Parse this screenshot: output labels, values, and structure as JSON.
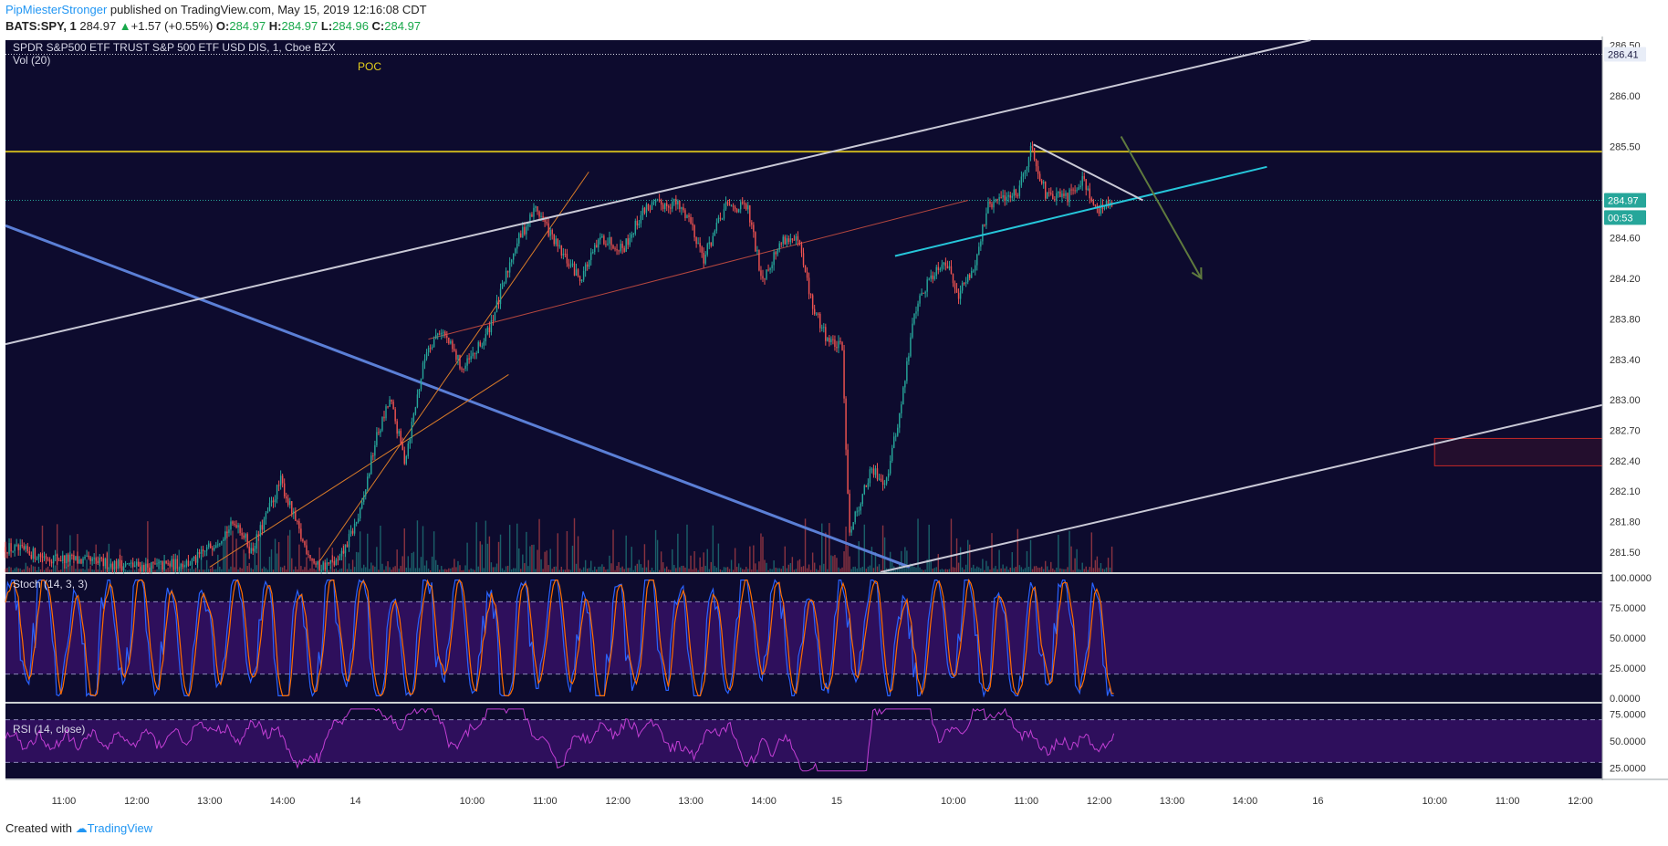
{
  "header": {
    "author": "PipMiesterStronger",
    "published_text": "published on TradingView.com, May 15, 2019 12:16:08 CDT",
    "symbol": "BATS:SPY, 1",
    "last_price": "284.97",
    "change_text": "+1.57 (+0.55%)",
    "open_label": "O:",
    "open_value": "284.97",
    "high_label": "H:",
    "high_value": "284.97",
    "low_label": "L:",
    "low_value": "284.96",
    "close_label": "C:",
    "close_value": "284.97"
  },
  "footer": {
    "created_with": "Created with",
    "brand": "TradingView"
  },
  "chart_data": {
    "type": "candlestick",
    "title": "SPDR S&P500 ETF TRUST S&P 500 ETF USD DIS, 1, Cboe BZX",
    "volume_label": "Vol (20)",
    "poc_label": "POC",
    "colors": {
      "background": "#0d0b2e",
      "up": "#26a69a",
      "down": "#ef5350",
      "poc_line": "#c7b21e",
      "last_price_line": "#26a69a",
      "stoch_band": "#2e0f5c",
      "stoch_k": "#2962ff",
      "stoch_d": "#ff6d00",
      "rsi_band": "#2e0f5c",
      "rsi_line": "#c23fd4",
      "trend_light": "#c9c9d6",
      "trend_blue": "#5b7fd6",
      "channel_orange": "#d97b28",
      "cyan_line": "#26c6da",
      "arrow_green": "#5f7a3e",
      "zone_red": "#c62828"
    },
    "price_axis": {
      "ylim": [
        281.3,
        286.55
      ],
      "ticks": [
        "286.50",
        "286.00",
        "285.50",
        "284.60",
        "284.20",
        "283.80",
        "283.40",
        "283.00",
        "282.70",
        "282.40",
        "282.10",
        "281.80",
        "281.50"
      ],
      "tick_values": [
        286.5,
        286.0,
        285.5,
        284.6,
        284.2,
        283.8,
        283.4,
        283.0,
        282.7,
        282.4,
        282.1,
        281.8,
        281.5
      ],
      "price_labels": [
        {
          "text": "286.41",
          "value": 286.41
        },
        {
          "text": "284.97",
          "value": 284.97
        },
        {
          "text": "00:53",
          "value": 284.8
        }
      ],
      "poc_level": 285.45
    },
    "time_axis": {
      "labels": [
        "11:00",
        "12:00",
        "13:00",
        "14:00",
        "14",
        "10:00",
        "11:00",
        "12:00",
        "13:00",
        "14:00",
        "15",
        "10:00",
        "11:00",
        "12:00",
        "13:00",
        "14:00",
        "16",
        "10:00",
        "11:00",
        "12:00"
      ],
      "positions": [
        0.8,
        1.8,
        2.8,
        3.8,
        4.8,
        6.4,
        7.4,
        8.4,
        9.4,
        10.4,
        11.4,
        13.0,
        14.0,
        15.0,
        16.0,
        17.0,
        18.0,
        19.6,
        20.6,
        21.6
      ],
      "xlim": [
        0,
        21.9
      ]
    },
    "price_series": [
      {
        "x": 0.0,
        "y": 281.55
      },
      {
        "x": 0.6,
        "y": 281.45
      },
      {
        "x": 1.2,
        "y": 281.4
      },
      {
        "x": 2.0,
        "y": 281.35
      },
      {
        "x": 2.6,
        "y": 281.4
      },
      {
        "x": 3.2,
        "y": 281.8
      },
      {
        "x": 3.4,
        "y": 281.5
      },
      {
        "x": 3.8,
        "y": 282.2
      },
      {
        "x": 4.1,
        "y": 281.6
      },
      {
        "x": 4.3,
        "y": 281.35
      },
      {
        "x": 4.6,
        "y": 281.4
      },
      {
        "x": 4.9,
        "y": 281.9
      },
      {
        "x": 5.1,
        "y": 282.6
      },
      {
        "x": 5.3,
        "y": 283.0
      },
      {
        "x": 5.5,
        "y": 282.4
      },
      {
        "x": 5.8,
        "y": 283.5
      },
      {
        "x": 6.0,
        "y": 283.7
      },
      {
        "x": 6.3,
        "y": 283.3
      },
      {
        "x": 6.6,
        "y": 283.6
      },
      {
        "x": 6.8,
        "y": 284.0
      },
      {
        "x": 7.0,
        "y": 284.5
      },
      {
        "x": 7.3,
        "y": 284.9
      },
      {
        "x": 7.6,
        "y": 284.5
      },
      {
        "x": 7.9,
        "y": 284.2
      },
      {
        "x": 8.2,
        "y": 284.6
      },
      {
        "x": 8.5,
        "y": 284.5
      },
      {
        "x": 8.8,
        "y": 284.9
      },
      {
        "x": 9.2,
        "y": 284.95
      },
      {
        "x": 9.4,
        "y": 284.8
      },
      {
        "x": 9.6,
        "y": 284.4
      },
      {
        "x": 9.9,
        "y": 284.9
      },
      {
        "x": 10.2,
        "y": 284.9
      },
      {
        "x": 10.4,
        "y": 284.2
      },
      {
        "x": 10.7,
        "y": 284.6
      },
      {
        "x": 10.9,
        "y": 284.55
      },
      {
        "x": 11.1,
        "y": 283.9
      },
      {
        "x": 11.3,
        "y": 283.6
      },
      {
        "x": 11.5,
        "y": 283.5
      },
      {
        "x": 11.6,
        "y": 281.7
      },
      {
        "x": 11.9,
        "y": 282.3
      },
      {
        "x": 12.1,
        "y": 282.2
      },
      {
        "x": 12.3,
        "y": 282.9
      },
      {
        "x": 12.5,
        "y": 283.9
      },
      {
        "x": 12.7,
        "y": 284.2
      },
      {
        "x": 12.9,
        "y": 284.4
      },
      {
        "x": 13.1,
        "y": 284.05
      },
      {
        "x": 13.3,
        "y": 284.3
      },
      {
        "x": 13.5,
        "y": 284.9
      },
      {
        "x": 13.7,
        "y": 285.0
      },
      {
        "x": 13.9,
        "y": 285.05
      },
      {
        "x": 14.1,
        "y": 285.5
      },
      {
        "x": 14.3,
        "y": 285.0
      },
      {
        "x": 14.6,
        "y": 285.0
      },
      {
        "x": 14.8,
        "y": 285.2
      },
      {
        "x": 15.0,
        "y": 284.85
      },
      {
        "x": 15.2,
        "y": 284.97
      }
    ],
    "stoch": {
      "label": "Stoch (14, 3, 3)",
      "ylim": [
        -3,
        103
      ],
      "ticks": [
        "100.0000",
        "75.0000",
        "50.0000",
        "25.0000",
        "0.0000"
      ],
      "tick_values": [
        100,
        75,
        50,
        25,
        0
      ],
      "band": [
        20,
        80
      ]
    },
    "rsi": {
      "label": "RSI (14, close)",
      "ylim": [
        15,
        85
      ],
      "ticks": [
        "75.0000",
        "50.0000",
        "25.0000"
      ],
      "tick_values": [
        75,
        50,
        25
      ],
      "band": [
        30,
        70
      ]
    },
    "drawings": {
      "upper_channel_line": [
        [
          0.0,
          283.55
        ],
        [
          17.9,
          286.55
        ]
      ],
      "lower_channel_line": [
        [
          12.0,
          281.3
        ],
        [
          21.9,
          282.95
        ]
      ],
      "blue_trend_line": [
        [
          0.0,
          284.72
        ],
        [
          12.4,
          281.35
        ]
      ],
      "orange_channel_top": [
        [
          4.3,
          281.4
        ],
        [
          8.0,
          285.25
        ]
      ],
      "orange_channel_bottom": [
        [
          2.8,
          281.35
        ],
        [
          6.9,
          283.25
        ]
      ],
      "red_trend_line": [
        [
          5.8,
          283.6
        ],
        [
          13.2,
          284.97
        ]
      ],
      "cyan_line": [
        [
          12.2,
          284.42
        ],
        [
          17.3,
          285.3
        ]
      ],
      "wedge_top_line": [
        [
          14.1,
          285.52
        ],
        [
          15.6,
          284.97
        ]
      ],
      "green_arrow": [
        [
          15.3,
          285.6
        ],
        [
          16.4,
          284.2
        ]
      ],
      "red_zone": {
        "x0": 19.6,
        "x1": 21.9,
        "y0": 282.35,
        "y1": 282.62
      }
    }
  }
}
